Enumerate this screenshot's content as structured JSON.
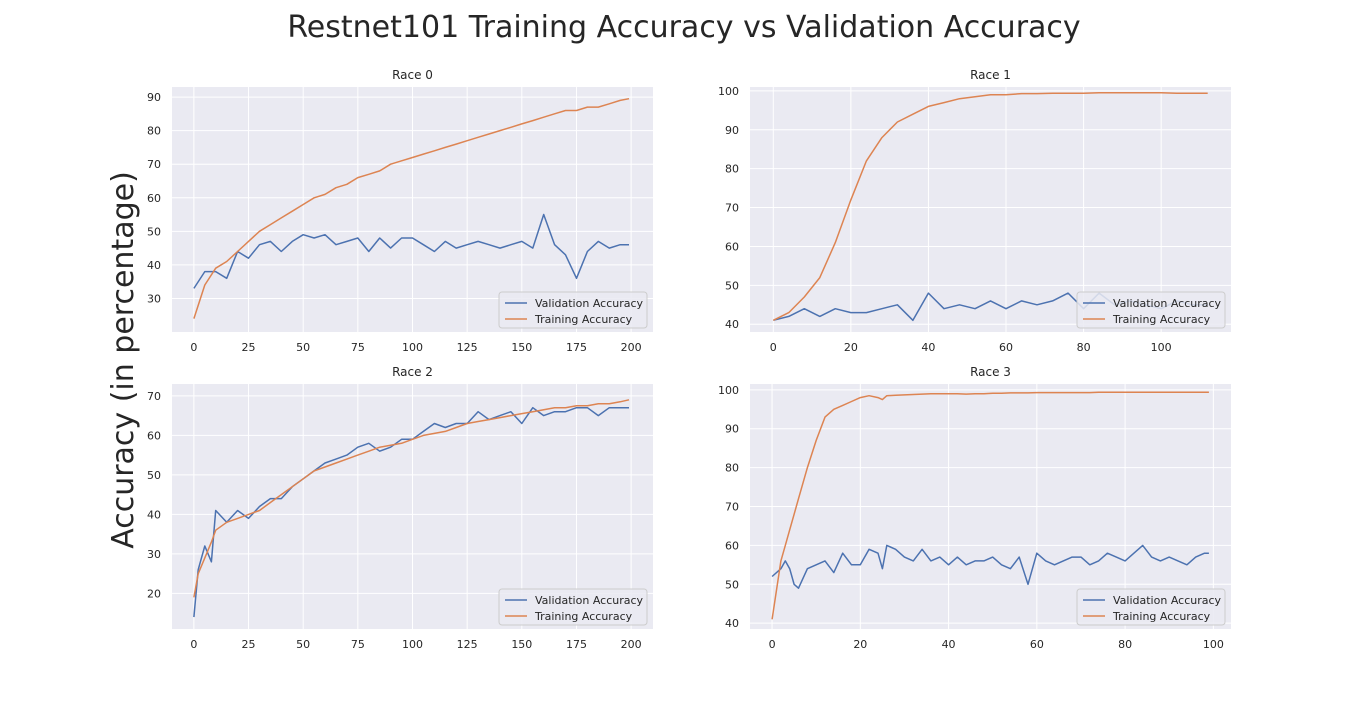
{
  "figure": {
    "title": "Restnet101 Training Accuracy vs Validation Accuracy",
    "ylabel": "Accuracy (in percentage)"
  },
  "colors": {
    "validation": "#4c72b0",
    "training": "#dd8452",
    "panel_bg": "#eaeaf2",
    "grid": "#ffffff",
    "text": "#262626"
  },
  "chart_data": [
    {
      "type": "line",
      "title": "Race 0",
      "xlim": [
        -10,
        210
      ],
      "ylim": [
        20,
        93
      ],
      "xticks": [
        0,
        25,
        50,
        75,
        100,
        125,
        150,
        175,
        200
      ],
      "yticks": [
        30,
        40,
        50,
        60,
        70,
        80,
        90
      ],
      "legend": "bottom-right",
      "x": [
        0,
        5,
        10,
        15,
        20,
        25,
        30,
        35,
        40,
        45,
        50,
        55,
        60,
        65,
        70,
        75,
        80,
        85,
        90,
        95,
        100,
        105,
        110,
        115,
        120,
        125,
        130,
        135,
        140,
        145,
        150,
        155,
        160,
        165,
        170,
        175,
        180,
        185,
        190,
        195,
        199
      ],
      "series": [
        {
          "name": "Validation Accuracy",
          "color": "validation",
          "values": [
            33,
            38,
            38,
            36,
            44,
            42,
            46,
            47,
            44,
            47,
            49,
            48,
            49,
            46,
            47,
            48,
            44,
            48,
            45,
            48,
            48,
            46,
            44,
            47,
            45,
            46,
            47,
            46,
            45,
            46,
            47,
            45,
            55,
            46,
            43,
            36,
            44,
            47,
            45,
            46,
            46
          ]
        },
        {
          "name": "Training Accuracy",
          "color": "training",
          "values": [
            24,
            34,
            39,
            41,
            44,
            47,
            50,
            52,
            54,
            56,
            58,
            60,
            61,
            63,
            64,
            66,
            67,
            68,
            70,
            71,
            72,
            73,
            74,
            75,
            76,
            77,
            78,
            79,
            80,
            81,
            82,
            83,
            84,
            85,
            86,
            86,
            87,
            87,
            88,
            89,
            89.5
          ]
        }
      ]
    },
    {
      "type": "line",
      "title": "Race 1",
      "xlim": [
        -6,
        118
      ],
      "ylim": [
        38,
        101
      ],
      "xticks": [
        0,
        20,
        40,
        60,
        80,
        100
      ],
      "yticks": [
        40,
        50,
        60,
        70,
        80,
        90,
        100
      ],
      "legend": "bottom-right",
      "x": [
        0,
        4,
        8,
        12,
        16,
        20,
        24,
        28,
        32,
        36,
        40,
        44,
        48,
        52,
        56,
        60,
        64,
        68,
        72,
        76,
        80,
        84,
        88,
        92,
        96,
        100,
        104,
        108,
        112
      ],
      "series": [
        {
          "name": "Validation Accuracy",
          "color": "validation",
          "values": [
            41,
            42,
            44,
            42,
            44,
            43,
            43,
            44,
            45,
            41,
            48,
            44,
            45,
            44,
            46,
            44,
            46,
            45,
            46,
            48,
            44,
            48,
            45,
            46,
            45,
            44,
            46,
            45,
            45
          ]
        },
        {
          "name": "Training Accuracy",
          "color": "training",
          "values": [
            41,
            43,
            47,
            52,
            61,
            72,
            82,
            88,
            92,
            94,
            96,
            97,
            98,
            98.5,
            99,
            99,
            99.3,
            99.3,
            99.4,
            99.4,
            99.4,
            99.5,
            99.5,
            99.5,
            99.5,
            99.5,
            99.4,
            99.4,
            99.4
          ]
        }
      ]
    },
    {
      "type": "line",
      "title": "Race 2",
      "xlim": [
        -10,
        210
      ],
      "ylim": [
        11,
        73
      ],
      "xticks": [
        0,
        25,
        50,
        75,
        100,
        125,
        150,
        175,
        200
      ],
      "yticks": [
        20,
        30,
        40,
        50,
        60,
        70
      ],
      "legend": "bottom-right",
      "x": [
        0,
        2,
        5,
        8,
        10,
        15,
        20,
        25,
        30,
        35,
        40,
        45,
        50,
        55,
        60,
        65,
        70,
        75,
        80,
        85,
        90,
        95,
        100,
        105,
        110,
        115,
        120,
        125,
        130,
        135,
        140,
        145,
        150,
        155,
        160,
        165,
        170,
        175,
        180,
        185,
        190,
        195,
        199
      ],
      "series": [
        {
          "name": "Validation Accuracy",
          "color": "validation",
          "values": [
            14,
            26,
            32,
            28,
            41,
            38,
            41,
            39,
            42,
            44,
            44,
            47,
            49,
            51,
            53,
            54,
            55,
            57,
            58,
            56,
            57,
            59,
            59,
            61,
            63,
            62,
            63,
            63,
            66,
            64,
            65,
            66,
            63,
            67,
            65,
            66,
            66,
            67,
            67,
            65,
            67,
            67,
            67
          ]
        },
        {
          "name": "Training Accuracy",
          "color": "training",
          "values": [
            19,
            25,
            29,
            33,
            36,
            38,
            39,
            40,
            41,
            43,
            45,
            47,
            49,
            51,
            52,
            53,
            54,
            55,
            56,
            57,
            57.5,
            58,
            59,
            60,
            60.5,
            61,
            62,
            63,
            63.5,
            64,
            64.5,
            65,
            65.5,
            66,
            66.5,
            67,
            67,
            67.5,
            67.5,
            68,
            68,
            68.5,
            69
          ]
        }
      ]
    },
    {
      "type": "line",
      "title": "Race 3",
      "xlim": [
        -5,
        104
      ],
      "ylim": [
        38.5,
        101.5
      ],
      "xticks": [
        0,
        20,
        40,
        60,
        80,
        100
      ],
      "yticks": [
        40,
        50,
        60,
        70,
        80,
        90,
        100
      ],
      "legend": "bottom-right",
      "x": [
        0,
        2,
        3,
        4,
        5,
        6,
        8,
        10,
        12,
        14,
        16,
        18,
        20,
        22,
        24,
        25,
        26,
        28,
        30,
        32,
        34,
        36,
        38,
        40,
        42,
        44,
        46,
        48,
        50,
        52,
        54,
        56,
        58,
        60,
        62,
        64,
        66,
        68,
        70,
        72,
        74,
        76,
        78,
        80,
        82,
        84,
        86,
        88,
        90,
        92,
        94,
        96,
        98,
        99
      ],
      "series": [
        {
          "name": "Validation Accuracy",
          "color": "validation",
          "values": [
            52,
            54,
            56,
            54,
            50,
            49,
            54,
            55,
            56,
            53,
            58,
            55,
            55,
            59,
            58,
            54,
            60,
            59,
            57,
            56,
            59,
            56,
            57,
            55,
            57,
            55,
            56,
            56,
            57,
            55,
            54,
            57,
            50,
            58,
            56,
            55,
            56,
            57,
            57,
            55,
            56,
            58,
            57,
            56,
            58,
            60,
            57,
            56,
            57,
            56,
            55,
            57,
            58,
            58
          ]
        },
        {
          "name": "Training Accuracy",
          "color": "training",
          "values": [
            41,
            56,
            60,
            64,
            68,
            72,
            80,
            87,
            93,
            95,
            96,
            97,
            98,
            98.5,
            98,
            97.5,
            98.5,
            98.6,
            98.7,
            98.8,
            98.9,
            99,
            99,
            99,
            99,
            98.9,
            99,
            99,
            99.1,
            99.1,
            99.2,
            99.2,
            99.2,
            99.3,
            99.3,
            99.3,
            99.3,
            99.3,
            99.3,
            99.3,
            99.4,
            99.4,
            99.4,
            99.4,
            99.4,
            99.4,
            99.4,
            99.4,
            99.4,
            99.4,
            99.4,
            99.4,
            99.4,
            99.4
          ]
        }
      ]
    }
  ]
}
